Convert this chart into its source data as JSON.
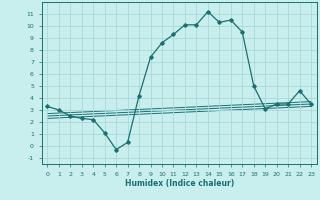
{
  "xlabel": "Humidex (Indice chaleur)",
  "bg_color": "#c8eeee",
  "grid_color": "#aad8d8",
  "line_color": "#1a7070",
  "x_main": [
    0,
    1,
    2,
    3,
    4,
    5,
    6,
    7,
    8,
    9,
    10,
    11,
    12,
    13,
    14,
    15,
    16,
    17,
    18,
    19,
    20,
    21,
    22,
    23
  ],
  "y_main": [
    3.3,
    3.0,
    2.5,
    2.3,
    2.2,
    1.1,
    -0.3,
    0.3,
    4.2,
    7.4,
    8.6,
    9.3,
    10.1,
    10.1,
    11.2,
    10.3,
    10.5,
    9.5,
    5.0,
    3.1,
    3.5,
    3.5,
    4.6,
    3.5
  ],
  "trend_lines": [
    {
      "x": [
        0,
        23
      ],
      "y": [
        2.3,
        3.3
      ]
    },
    {
      "x": [
        0,
        23
      ],
      "y": [
        2.5,
        3.5
      ]
    },
    {
      "x": [
        0,
        23
      ],
      "y": [
        2.7,
        3.7
      ]
    }
  ],
  "ylim": [
    -1.5,
    12.0
  ],
  "xlim": [
    -0.5,
    23.5
  ],
  "yticks": [
    -1,
    0,
    1,
    2,
    3,
    4,
    5,
    6,
    7,
    8,
    9,
    10,
    11
  ],
  "xticks": [
    0,
    1,
    2,
    3,
    4,
    5,
    6,
    7,
    8,
    9,
    10,
    11,
    12,
    13,
    14,
    15,
    16,
    17,
    18,
    19,
    20,
    21,
    22,
    23
  ]
}
